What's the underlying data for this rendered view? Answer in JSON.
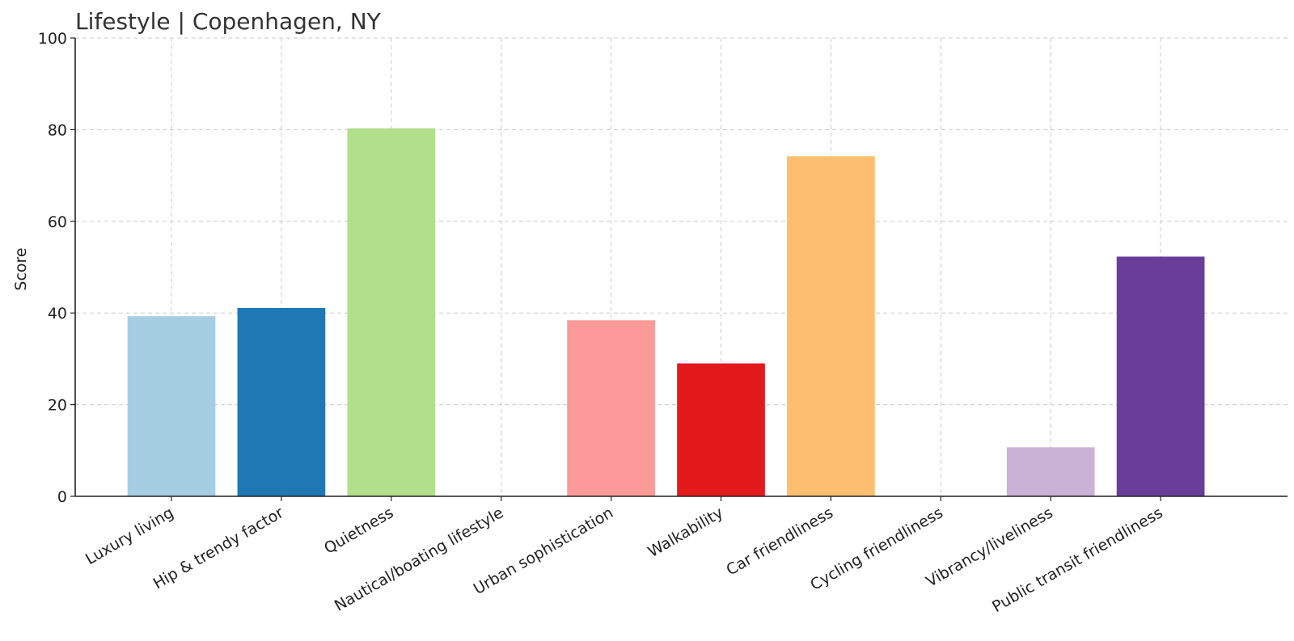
{
  "chart_data": {
    "type": "bar",
    "title": "Lifestyle | Copenhagen, NY",
    "xlabel": "",
    "ylabel": "Score",
    "ylim": [
      0,
      100
    ],
    "yticks": [
      "0",
      "20",
      "40",
      "60",
      "80",
      "100"
    ],
    "grid": true,
    "categories": [
      "Luxury living",
      "Hip & trendy factor",
      "Quietness",
      "Nautical/boating lifestyle",
      "Urban sophistication",
      "Walkability",
      "Car friendliness",
      "Cycling friendliness",
      "Vibrancy/liveliness",
      "Public transit friendliness"
    ],
    "values": [
      39.3,
      41.1,
      80.3,
      0,
      38.4,
      29.0,
      74.2,
      0,
      10.7,
      52.3
    ],
    "colors": [
      "#a6cee3",
      "#1f78b4",
      "#b2df8a",
      "#33a02c",
      "#fb9a99",
      "#e31a1c",
      "#fdbf6f",
      "#ff7f00",
      "#cab2d6",
      "#6a3d9a"
    ]
  }
}
